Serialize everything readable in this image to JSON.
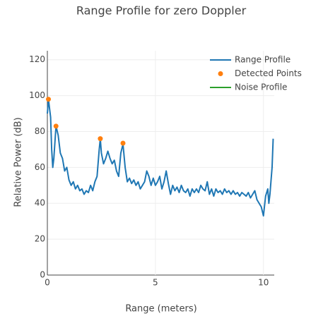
{
  "chart_data": {
    "type": "line",
    "title": "Range Profile for zero Doppler",
    "x_label": "Range (meters)",
    "y_label": "Relative Power (dB)",
    "xlim": [
      0,
      10.5
    ],
    "xticks": [
      0,
      5,
      10
    ],
    "ylim": [
      0,
      125
    ],
    "yticks": [
      0,
      20,
      40,
      60,
      80,
      100,
      120
    ],
    "grid": true,
    "legend": "top-right",
    "series": [
      {
        "name": "Range Profile",
        "color": "#1f77b4",
        "mode": "lines",
        "x": [
          0,
          0.05,
          0.15,
          0.2,
          0.25,
          0.3,
          0.4,
          0.5,
          0.6,
          0.7,
          0.8,
          0.9,
          1.0,
          1.1,
          1.2,
          1.3,
          1.4,
          1.5,
          1.6,
          1.7,
          1.8,
          1.9,
          2.0,
          2.1,
          2.2,
          2.3,
          2.4,
          2.45,
          2.5,
          2.6,
          2.7,
          2.8,
          2.9,
          3.0,
          3.1,
          3.2,
          3.3,
          3.4,
          3.5,
          3.6,
          3.7,
          3.8,
          3.9,
          4.0,
          4.1,
          4.2,
          4.3,
          4.4,
          4.5,
          4.6,
          4.7,
          4.8,
          4.9,
          5.0,
          5.1,
          5.2,
          5.3,
          5.4,
          5.5,
          5.6,
          5.7,
          5.8,
          5.9,
          6.0,
          6.1,
          6.2,
          6.3,
          6.4,
          6.5,
          6.6,
          6.7,
          6.8,
          6.9,
          7.0,
          7.1,
          7.2,
          7.3,
          7.4,
          7.5,
          7.6,
          7.7,
          7.8,
          7.9,
          8.0,
          8.1,
          8.2,
          8.3,
          8.4,
          8.5,
          8.6,
          8.7,
          8.8,
          8.9,
          9.0,
          9.1,
          9.2,
          9.3,
          9.4,
          9.5,
          9.6,
          9.7,
          9.8,
          9.9,
          10.0,
          10.1,
          10.2,
          10.25,
          10.3,
          10.4,
          10.45
        ],
        "values": [
          90,
          98,
          88,
          70,
          60,
          65,
          83,
          78,
          68,
          65,
          58,
          60,
          53,
          50,
          52,
          48,
          50,
          47,
          48,
          45,
          47,
          46,
          50,
          47,
          52,
          55,
          70,
          76,
          68,
          62,
          65,
          69,
          65,
          62,
          64,
          58,
          55,
          68,
          73,
          60,
          52,
          54,
          51,
          53,
          50,
          52,
          48,
          50,
          52,
          58,
          55,
          50,
          54,
          50,
          52,
          55,
          48,
          52,
          58,
          51,
          45,
          50,
          47,
          49,
          46,
          50,
          47,
          46,
          48,
          44,
          48,
          46,
          48,
          46,
          50,
          48,
          47,
          52,
          45,
          48,
          44,
          48,
          46,
          47,
          45,
          48,
          46,
          47,
          45,
          47,
          45,
          46,
          44,
          46,
          45,
          44,
          46,
          43,
          45,
          47,
          42,
          40,
          38,
          33,
          44,
          48,
          40,
          45,
          60,
          76
        ]
      },
      {
        "name": "Detected Points",
        "color": "#ff7f0e",
        "mode": "markers",
        "x": [
          0.05,
          0.4,
          2.45,
          3.5
        ],
        "values": [
          98,
          83,
          76,
          73.5
        ]
      },
      {
        "name": "Noise Profile",
        "color": "#2ca02c",
        "mode": "lines",
        "x": [],
        "values": []
      }
    ]
  }
}
